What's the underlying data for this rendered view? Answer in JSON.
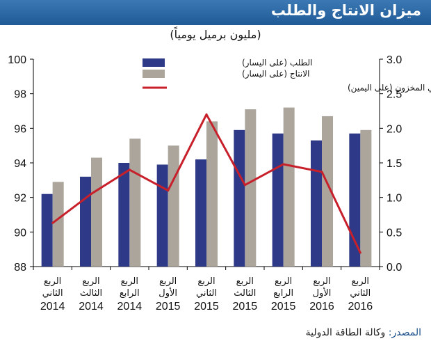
{
  "header": {
    "title": "ميزان الانتاج والطلب",
    "subtitle": "(مليون برميل يومياً)"
  },
  "source": {
    "label": "المصدر:",
    "value": " وكالة الطاقة الدولية"
  },
  "colors": {
    "demand": "#2e3a87",
    "production": "#aba59c",
    "balance": "#c8202a",
    "header": "#2b6aa6"
  },
  "chart_data": {
    "type": "bar",
    "categories": [
      {
        "line1": "الربع",
        "line2": "الثاني",
        "year": "2014"
      },
      {
        "line1": "الربع",
        "line2": "الثالث",
        "year": "2014"
      },
      {
        "line1": "الربع",
        "line2": "الرابع",
        "year": "2014"
      },
      {
        "line1": "الربع",
        "line2": "الأول",
        "year": "2015"
      },
      {
        "line1": "الربع",
        "line2": "الثاني",
        "year": "2015"
      },
      {
        "line1": "الربع",
        "line2": "الثالث",
        "year": "2015"
      },
      {
        "line1": "الربع",
        "line2": "الرابع",
        "year": "2015"
      },
      {
        "line1": "الربع",
        "line2": "الأول",
        "year": "2016"
      },
      {
        "line1": "الربع",
        "line2": "الثاني",
        "year": "2016"
      }
    ],
    "series": [
      {
        "name": "الطلب (على اليسار)",
        "kind": "bar",
        "axis": "left",
        "values": [
          92.2,
          93.2,
          94.0,
          93.9,
          94.2,
          95.9,
          95.7,
          95.3,
          95.7
        ]
      },
      {
        "name": "الانتاج (على اليسار)",
        "kind": "bar",
        "axis": "left",
        "values": [
          92.9,
          94.3,
          95.4,
          95.0,
          96.4,
          97.1,
          97.2,
          96.7,
          95.9
        ]
      },
      {
        "name": "التوازن/التغير المحتمل في المخزون (على اليمين)",
        "kind": "line",
        "axis": "right",
        "values": [
          0.63,
          1.05,
          1.4,
          1.1,
          2.2,
          1.18,
          1.48,
          1.37,
          0.2
        ]
      }
    ],
    "left_axis": {
      "min": 88,
      "max": 100,
      "ticks": [
        "88",
        "90",
        "92",
        "94",
        "96",
        "98",
        "100"
      ]
    },
    "right_axis": {
      "min": 0,
      "max": 3,
      "ticks": [
        "0.0",
        "0.5",
        "1.0",
        "1.5",
        "2.0",
        "2.5",
        "3.0"
      ]
    },
    "legend_position": "top-right",
    "grid": false
  }
}
